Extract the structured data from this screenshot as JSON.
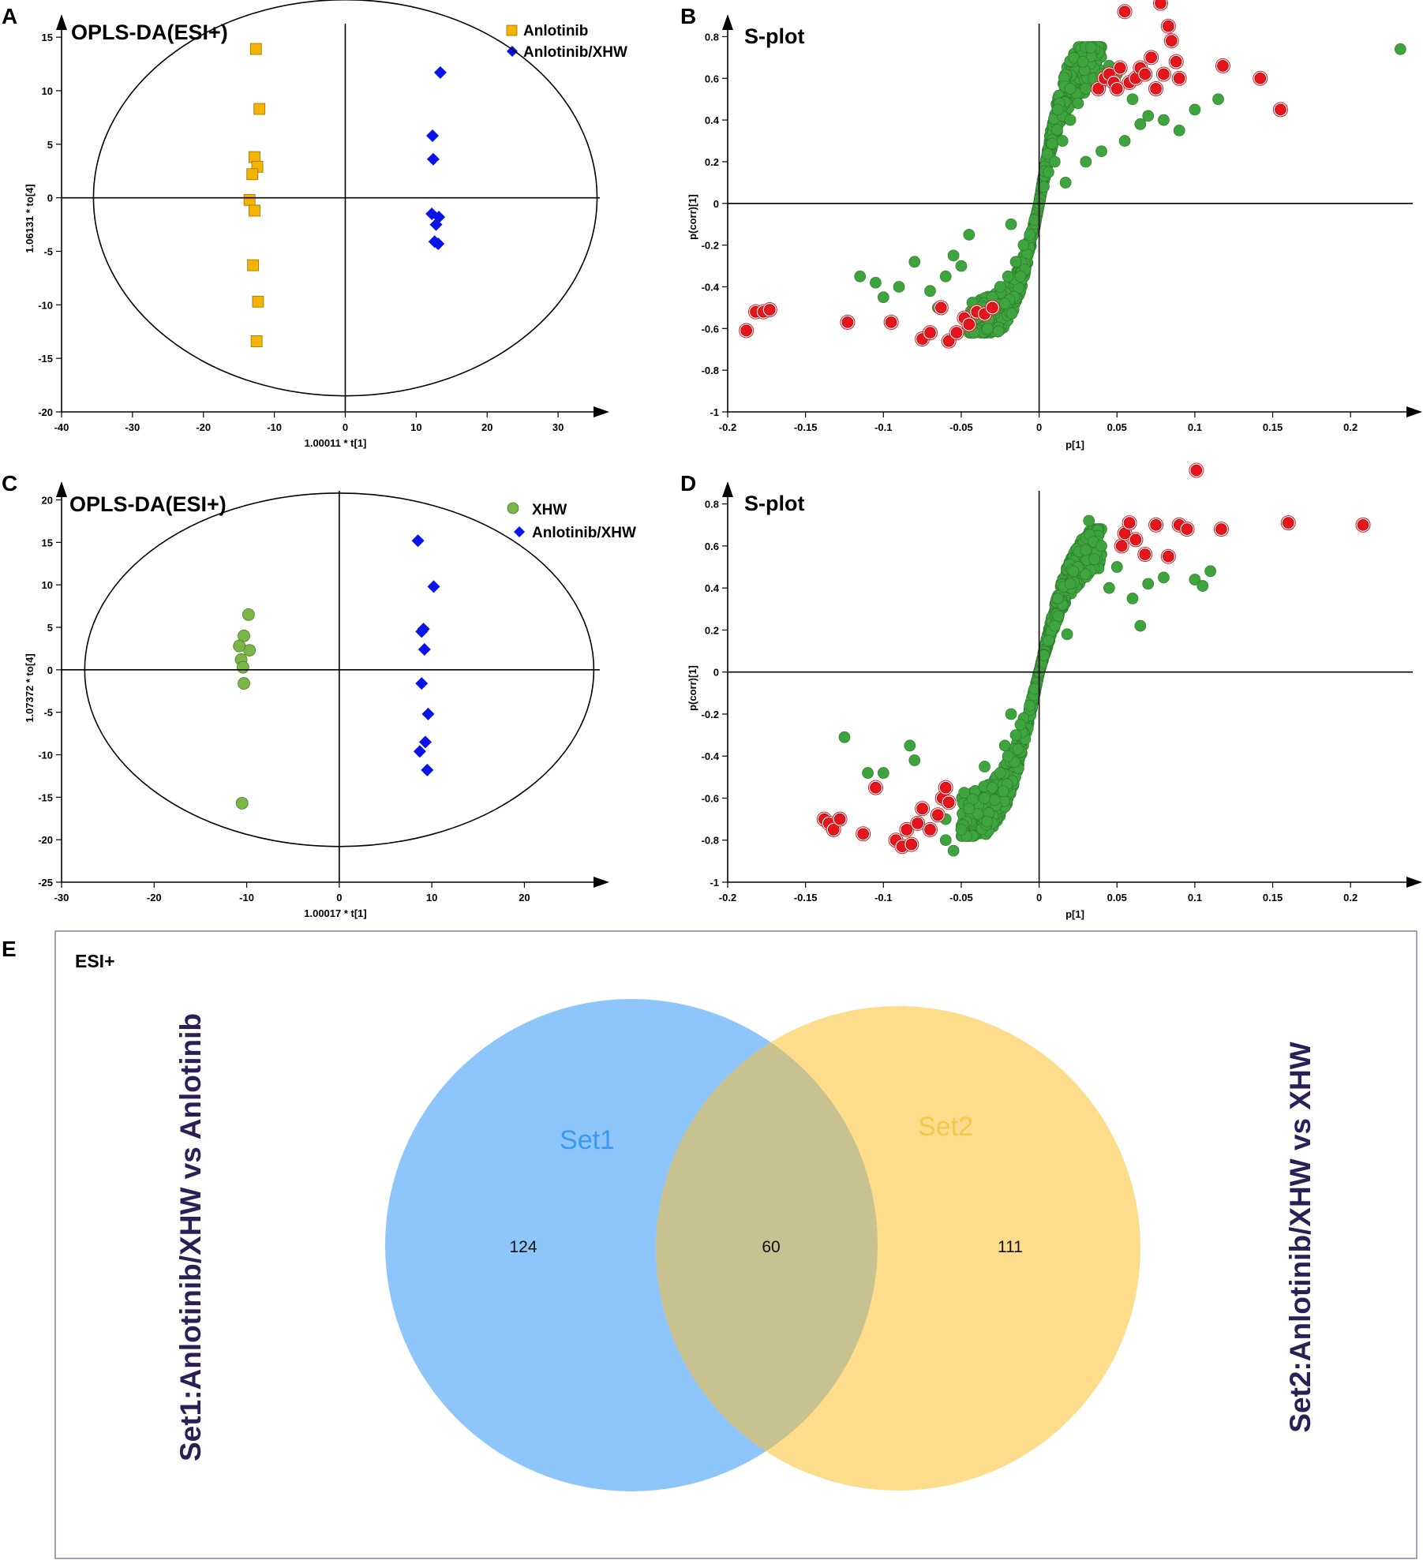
{
  "panels": {
    "A": {
      "label": "A",
      "title": "OPLS-DA(ESI+)",
      "xlabel": "1.00011 * t[1]",
      "ylabel": "1.06131 * to[4]",
      "xticks": [
        "-40",
        "-30",
        "-20",
        "-10",
        "0",
        "10",
        "20",
        "30"
      ],
      "yticks": [
        "15",
        "10",
        "5",
        "0",
        "-5",
        "-10",
        "-15",
        "-20"
      ],
      "legend": [
        "Anlotinib",
        "Anlotinib/XHW"
      ]
    },
    "B": {
      "label": "B",
      "title": "S-plot",
      "xlabel": "p[1]",
      "ylabel": "p(corr)[1]",
      "xticks": [
        "-0.2",
        "-0.15",
        "-0.1",
        "-0.05",
        "0",
        "0.05",
        "0.1",
        "0.15",
        "0.2"
      ],
      "yticks": [
        "0.8",
        "0.6",
        "0.4",
        "0.2",
        "0",
        "-0.2",
        "-0.4",
        "-0.6",
        "-0.8",
        "-1"
      ]
    },
    "C": {
      "label": "C",
      "title": "OPLS-DA(ESI+)",
      "xlabel": "1.00017 * t[1]",
      "ylabel": "1.07372 * to[4]",
      "xticks": [
        "-30",
        "-20",
        "-10",
        "0",
        "10",
        "20"
      ],
      "yticks": [
        "20",
        "15",
        "10",
        "5",
        "0",
        "-5",
        "-10",
        "-15",
        "-20",
        "-25"
      ],
      "legend": [
        "XHW",
        "Anlotinib/XHW"
      ]
    },
    "D": {
      "label": "D",
      "title": "S-plot",
      "xlabel": "p[1]",
      "ylabel": "p(corr)[1]",
      "xticks": [
        "-0.2",
        "-0.15",
        "-0.1",
        "-0.05",
        "0",
        "0.05",
        "0.1",
        "0.15",
        "0.2"
      ],
      "yticks": [
        "0.8",
        "0.6",
        "0.4",
        "0.2",
        "0",
        "-0.2",
        "-0.4",
        "-0.6",
        "-0.8",
        "-1"
      ]
    },
    "E": {
      "label": "E",
      "mode": "ESI+",
      "set1_name": "Set1",
      "set2_name": "Set2",
      "only_set1": "124",
      "both": "60",
      "only_set2": "111",
      "left_title": "Set1:Anlotinib/XHW vs Anlotinib",
      "right_title": "Set2:Anlotinib/XHW vs XHW"
    }
  },
  "colors": {
    "anlotinib": "#f5b400",
    "combo": "#0a14e6",
    "xhw": "#7ab648",
    "splot_green": "#3ea53e",
    "splot_red": "#e8141b",
    "set1": "#8ec5fb",
    "set2": "#fddc8c",
    "overlap": "#c7c290"
  },
  "chart_data": [
    {
      "type": "scatter",
      "panel": "A",
      "title": "OPLS-DA(ESI+)",
      "xlabel": "1.00011 * t[1]",
      "ylabel": "1.06131 * to[4]",
      "xlim": [
        -40,
        37
      ],
      "ylim": [
        -20,
        17
      ],
      "ellipse": {
        "rx": 35.5,
        "ry": 18.5
      },
      "series": [
        {
          "name": "Anlotinib",
          "marker": "square",
          "x": [
            -12.6,
            -12.1,
            -12.8,
            -12.4,
            -13.1,
            -13.5,
            -12.8,
            -13.0,
            -12.3,
            -12.5
          ],
          "y": [
            13.9,
            8.3,
            3.8,
            2.9,
            2.2,
            -0.2,
            -1.2,
            -6.3,
            -9.7,
            -13.4
          ]
        },
        {
          "name": "Anlotinib/XHW",
          "marker": "diamond",
          "x": [
            13.4,
            12.3,
            12.4,
            12.2,
            13.2,
            12.8,
            12.6,
            13.1
          ],
          "y": [
            11.7,
            5.8,
            3.6,
            -1.5,
            -1.8,
            -2.5,
            -4.1,
            -4.3
          ]
        }
      ]
    },
    {
      "type": "scatter",
      "panel": "B",
      "title": "S-plot",
      "xlabel": "p[1]",
      "ylabel": "p(corr)[1]",
      "xlim": [
        -0.2,
        0.245
      ],
      "ylim": [
        -1,
        0.9
      ],
      "series": [
        {
          "name": "green",
          "note": "S-shaped cloud of ~900 variables; representative points",
          "x": [
            0.0,
            0.003,
            -0.003,
            0.006,
            -0.006,
            0.01,
            -0.01,
            0.015,
            -0.015,
            0.02,
            -0.02,
            0.025,
            -0.025,
            0.03,
            -0.03,
            0.035,
            -0.035,
            0.04,
            -0.04,
            0.045,
            0.05,
            0.06,
            0.07,
            0.08,
            0.09,
            0.1,
            0.115,
            0.232,
            -0.05,
            -0.06,
            -0.07,
            -0.08,
            -0.09,
            -0.1,
            -0.105,
            -0.115,
            0.012,
            0.02,
            0.028,
            -0.012,
            -0.022,
            -0.033,
            0.03,
            0.04,
            0.055,
            0.065,
            -0.045,
            -0.055,
            -0.065,
            0.017,
            -0.018
          ],
          "y": [
            0.0,
            0.08,
            -0.08,
            0.15,
            -0.15,
            0.2,
            -0.2,
            0.3,
            -0.28,
            0.4,
            -0.35,
            0.48,
            -0.4,
            0.55,
            -0.45,
            0.6,
            -0.5,
            0.62,
            -0.55,
            0.66,
            0.62,
            0.5,
            0.42,
            0.4,
            0.35,
            0.45,
            0.5,
            0.74,
            -0.3,
            -0.35,
            -0.42,
            -0.28,
            -0.4,
            -0.45,
            -0.38,
            -0.35,
            0.45,
            0.55,
            0.68,
            -0.35,
            -0.48,
            -0.6,
            0.2,
            0.25,
            0.3,
            0.38,
            -0.15,
            -0.25,
            -0.5,
            0.1,
            -0.1
          ]
        },
        {
          "name": "red",
          "note": "selected variables (VIP)",
          "x": [
            -0.188,
            -0.182,
            -0.177,
            -0.173,
            -0.123,
            -0.095,
            -0.075,
            -0.07,
            -0.063,
            -0.058,
            -0.053,
            -0.048,
            -0.045,
            -0.04,
            -0.035,
            -0.03,
            0.038,
            0.042,
            0.045,
            0.048,
            0.052,
            0.055,
            0.058,
            0.062,
            0.065,
            0.068,
            0.072,
            0.075,
            0.078,
            0.08,
            0.083,
            0.085,
            0.088,
            0.09,
            0.118,
            0.142,
            0.155,
            0.05
          ],
          "y": [
            -0.61,
            -0.52,
            -0.52,
            -0.51,
            -0.57,
            -0.57,
            -0.65,
            -0.62,
            -0.5,
            -0.66,
            -0.62,
            -0.55,
            -0.58,
            -0.52,
            -0.53,
            -0.5,
            0.55,
            0.6,
            0.62,
            0.58,
            0.65,
            0.92,
            0.58,
            0.6,
            0.65,
            0.62,
            0.7,
            0.55,
            0.96,
            0.62,
            0.85,
            0.78,
            0.68,
            0.6,
            0.66,
            0.6,
            0.45,
            0.55
          ]
        }
      ]
    },
    {
      "type": "scatter",
      "panel": "C",
      "title": "OPLS-DA(ESI+)",
      "xlabel": "1.00017 * t[1]",
      "ylabel": "1.07372 * to[4]",
      "xlim": [
        -30,
        29
      ],
      "ylim": [
        -25,
        22
      ],
      "ellipse": {
        "rx": 27.5,
        "ry": 20.8
      },
      "series": [
        {
          "name": "XHW",
          "marker": "circle",
          "x": [
            -9.8,
            -10.3,
            -9.7,
            -10.8,
            -10.6,
            -10.4,
            -10.3,
            -10.5
          ],
          "y": [
            6.5,
            4.0,
            2.3,
            2.8,
            1.2,
            0.3,
            -1.6,
            -15.7
          ]
        },
        {
          "name": "Anlotinib/XHW",
          "marker": "diamond",
          "x": [
            8.5,
            10.2,
            9.1,
            8.9,
            9.2,
            8.9,
            9.6,
            9.3,
            8.7,
            9.5
          ],
          "y": [
            15.2,
            9.8,
            4.8,
            4.5,
            2.4,
            -1.6,
            -5.2,
            -8.5,
            -9.6,
            -11.8
          ]
        }
      ]
    },
    {
      "type": "scatter",
      "panel": "D",
      "title": "S-plot",
      "xlabel": "p[1]",
      "ylabel": "p(corr)[1]",
      "xlim": [
        -0.2,
        0.245
      ],
      "ylim": [
        -1,
        0.9
      ],
      "series": [
        {
          "name": "green",
          "note": "S-shaped cloud; representative points",
          "x": [
            0.0,
            0.003,
            -0.003,
            0.006,
            -0.006,
            0.01,
            -0.01,
            0.015,
            -0.015,
            0.02,
            -0.02,
            0.025,
            -0.025,
            0.03,
            -0.03,
            0.035,
            -0.035,
            0.04,
            -0.045,
            0.05,
            0.06,
            0.07,
            0.08,
            0.1,
            0.105,
            0.11,
            -0.05,
            -0.06,
            -0.08,
            -0.083,
            -0.1,
            -0.11,
            -0.125,
            -0.055,
            0.012,
            0.022,
            0.032,
            -0.012,
            -0.022,
            -0.035,
            0.045,
            0.065,
            -0.06,
            0.018,
            -0.018
          ],
          "y": [
            0.0,
            0.08,
            -0.08,
            0.15,
            -0.16,
            0.22,
            -0.22,
            0.32,
            -0.3,
            0.42,
            -0.4,
            0.5,
            -0.48,
            0.58,
            -0.55,
            0.62,
            -0.6,
            0.6,
            -0.65,
            0.5,
            0.35,
            0.42,
            0.45,
            0.44,
            0.41,
            0.48,
            -0.75,
            -0.8,
            -0.42,
            -0.35,
            -0.48,
            -0.48,
            -0.31,
            -0.85,
            0.35,
            0.48,
            0.72,
            -0.25,
            -0.35,
            -0.45,
            0.4,
            0.22,
            -0.7,
            0.18,
            -0.2
          ]
        },
        {
          "name": "red",
          "note": "selected variables (VIP)",
          "x": [
            -0.138,
            -0.135,
            -0.132,
            -0.128,
            -0.113,
            -0.105,
            -0.092,
            -0.088,
            -0.085,
            -0.082,
            -0.078,
            -0.075,
            -0.07,
            -0.065,
            -0.062,
            -0.06,
            -0.058,
            0.053,
            0.055,
            0.058,
            0.062,
            0.068,
            0.075,
            0.083,
            0.09,
            0.095,
            0.101,
            0.117,
            0.16,
            0.208
          ],
          "y": [
            -0.7,
            -0.72,
            -0.75,
            -0.7,
            -0.77,
            -0.55,
            -0.8,
            -0.83,
            -0.75,
            -0.82,
            -0.72,
            -0.65,
            -0.75,
            -0.68,
            -0.6,
            -0.55,
            -0.62,
            0.6,
            0.66,
            0.71,
            0.63,
            0.56,
            0.7,
            0.55,
            0.7,
            0.68,
            0.96,
            0.68,
            0.71,
            0.7
          ]
        }
      ]
    },
    {
      "type": "venn",
      "panel": "E",
      "title": "ESI+",
      "sets": [
        {
          "name": "Set1",
          "label": "Set1:Anlotinib/XHW vs Anlotinib",
          "only": 124
        },
        {
          "name": "Set2",
          "label": "Set2:Anlotinib/XHW vs XHW",
          "only": 111
        }
      ],
      "intersection": 60
    }
  ]
}
